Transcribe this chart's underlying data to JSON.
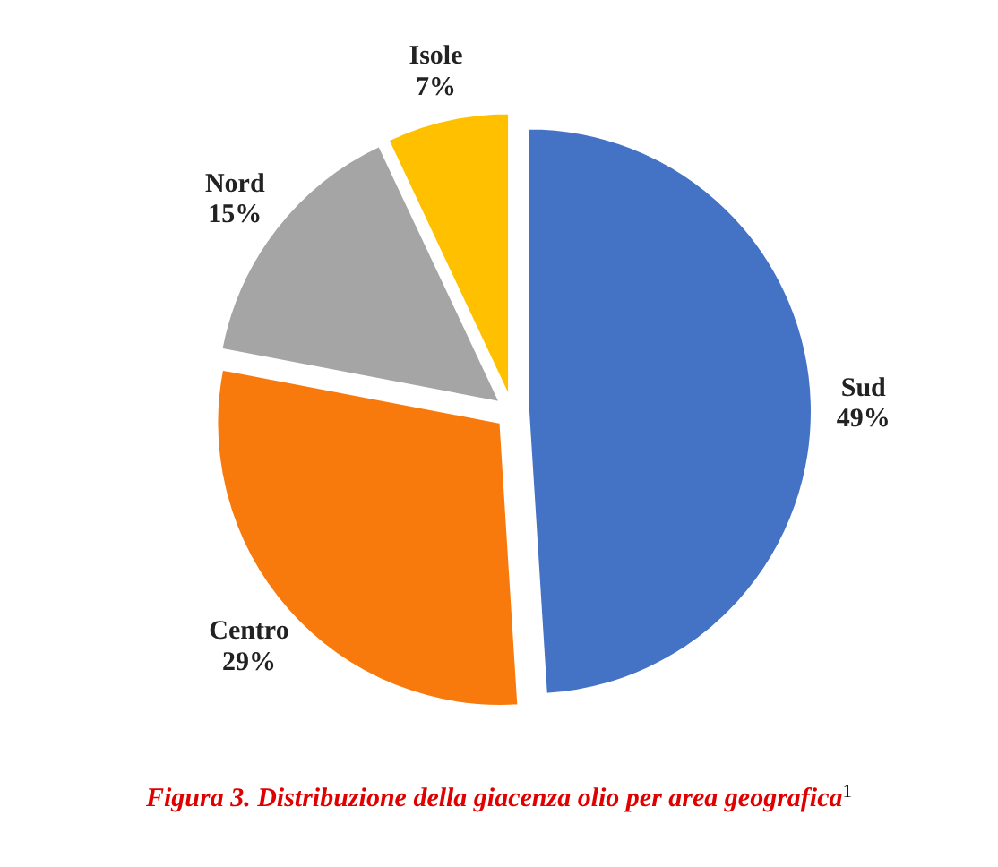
{
  "chart_data": {
    "type": "pie",
    "title": "Figura 3. Distribuzione della giacenza olio per area geografica$^{1}$",
    "categories": [
      "Sud",
      "Centro",
      "Nord",
      "Isole"
    ],
    "values": [
      49,
      29,
      15,
      7
    ],
    "value_labels": [
      "49%",
      "29%",
      "15%",
      "7%"
    ],
    "colors": [
      "#4472c4",
      "#f97a0c",
      "#a5a5a5",
      "#ffc000"
    ]
  }
}
